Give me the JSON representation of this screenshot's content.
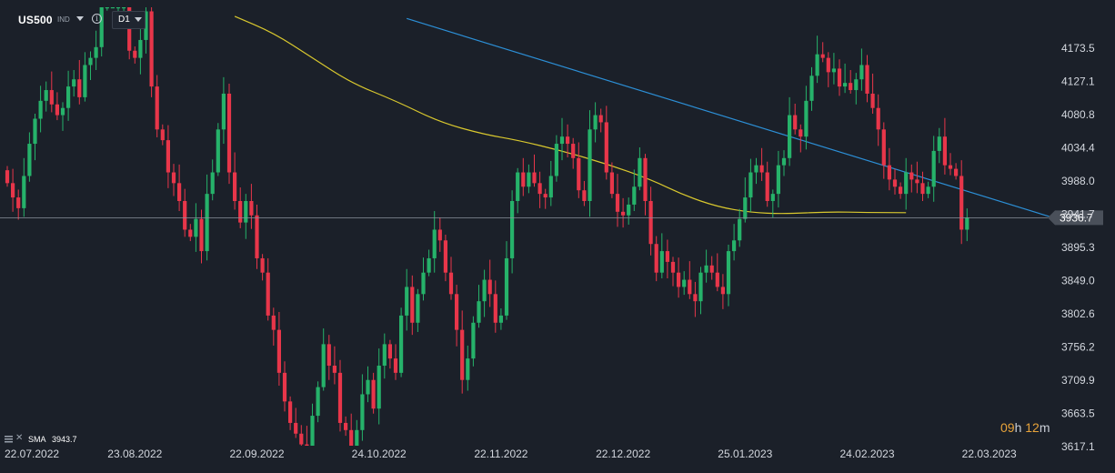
{
  "header": {
    "symbol": "US500",
    "instrument_type": "IND",
    "timeframe": "D1",
    "info_icon": "info-icon",
    "dropdown_icon": "chevron-down-icon"
  },
  "indicator_legend": {
    "icon": "indicator-settings-icon",
    "close_icon": "close-icon",
    "name": "SMA",
    "value": "3943.7"
  },
  "countdown": {
    "hours": "09",
    "hours_unit": "h",
    "minutes": "12",
    "minutes_unit": "m"
  },
  "colors": {
    "background": "#1b2029",
    "bull": "#26b26a",
    "bear": "#e8364a",
    "sma": "#d9c82e",
    "trendline": "#2c8fd6",
    "price_line": "#8a919c",
    "price_tag": "#4a505a"
  },
  "chart_data": {
    "type": "candlestick",
    "title": "US500",
    "y_range": [
      3595,
      4235
    ],
    "y_ticks": [
      "4173.5",
      "4127.1",
      "4080.8",
      "4034.4",
      "3988.0",
      "3941.7",
      "3895.3",
      "3849.0",
      "3802.6",
      "3756.2",
      "3709.9",
      "3663.5",
      "3617.1"
    ],
    "x_ticks": [
      {
        "label": "22.07.2022",
        "index": 0
      },
      {
        "label": "23.08.2022",
        "index": 23
      },
      {
        "label": "22.09.2022",
        "index": 45
      },
      {
        "label": "24.10.2022",
        "index": 67
      },
      {
        "label": "22.11.2022",
        "index": 89
      },
      {
        "label": "22.12.2022",
        "index": 111
      },
      {
        "label": "25.01.2023",
        "index": 133
      },
      {
        "label": "24.02.2023",
        "index": 155
      },
      {
        "label": "22.03.2023",
        "index": 177
      }
    ],
    "current_price": "3936.7",
    "current_price_value": 3936.7,
    "sma": {
      "name": "SMA",
      "value": "3943.7"
    },
    "closes": [
      3985,
      3965,
      3950,
      3995,
      4040,
      4075,
      4100,
      4115,
      4095,
      4080,
      4090,
      4120,
      4130,
      4105,
      4150,
      4160,
      4175,
      4235,
      4235,
      4235,
      4235,
      4235,
      4170,
      4160,
      4185,
      4225,
      4120,
      4060,
      4045,
      4000,
      3985,
      3960,
      3920,
      3910,
      3935,
      3890,
      3970,
      4000,
      4060,
      4110,
      4000,
      3960,
      3930,
      3960,
      3940,
      3880,
      3860,
      3800,
      3780,
      3720,
      3680,
      3650,
      3635,
      3620,
      3600,
      3660,
      3700,
      3760,
      3730,
      3720,
      3650,
      3640,
      3600,
      3640,
      3690,
      3710,
      3670,
      3730,
      3760,
      3740,
      3720,
      3800,
      3840,
      3790,
      3830,
      3860,
      3880,
      3920,
      3905,
      3860,
      3830,
      3780,
      3710,
      3740,
      3790,
      3820,
      3850,
      3830,
      3790,
      3800,
      3880,
      3960,
      4000,
      3980,
      4000,
      3985,
      3970,
      3965,
      3995,
      4040,
      4050,
      4040,
      4020,
      3975,
      3960,
      4060,
      4080,
      4070,
      4000,
      3970,
      3945,
      3940,
      3955,
      3980,
      4020,
      3960,
      3900,
      3860,
      3890,
      3875,
      3860,
      3840,
      3850,
      3830,
      3820,
      3860,
      3870,
      3860,
      3840,
      3830,
      3890,
      3905,
      3935,
      3965,
      4000,
      4010,
      4000,
      3960,
      3970,
      4010,
      4020,
      4080,
      4060,
      4050,
      4100,
      4135,
      4165,
      4160,
      4140,
      4145,
      4120,
      4125,
      4115,
      4130,
      4150,
      4110,
      4090,
      4060,
      4010,
      3990,
      3980,
      3970,
      4000,
      3990,
      3985,
      3970,
      3980,
      4030,
      4050,
      4010,
      4005,
      3995,
      3920,
      3936.7
    ],
    "trendline": {
      "start": {
        "index": 72,
        "value": 4215
      },
      "end": {
        "index": 176,
        "value": 3936.7
      }
    },
    "sma_path": [
      {
        "index": 41,
        "value": 4218
      },
      {
        "index": 48,
        "value": 4195
      },
      {
        "index": 55,
        "value": 4160
      },
      {
        "index": 62,
        "value": 4125
      },
      {
        "index": 70,
        "value": 4100
      },
      {
        "index": 78,
        "value": 4070
      },
      {
        "index": 86,
        "value": 4053
      },
      {
        "index": 92,
        "value": 4045
      },
      {
        "index": 100,
        "value": 4030
      },
      {
        "index": 108,
        "value": 4012
      },
      {
        "index": 116,
        "value": 3990
      },
      {
        "index": 122,
        "value": 3968
      },
      {
        "index": 128,
        "value": 3952
      },
      {
        "index": 134,
        "value": 3944
      },
      {
        "index": 140,
        "value": 3942
      },
      {
        "index": 148,
        "value": 3945
      },
      {
        "index": 155,
        "value": 3944
      },
      {
        "index": 162,
        "value": 3943.7
      }
    ]
  }
}
